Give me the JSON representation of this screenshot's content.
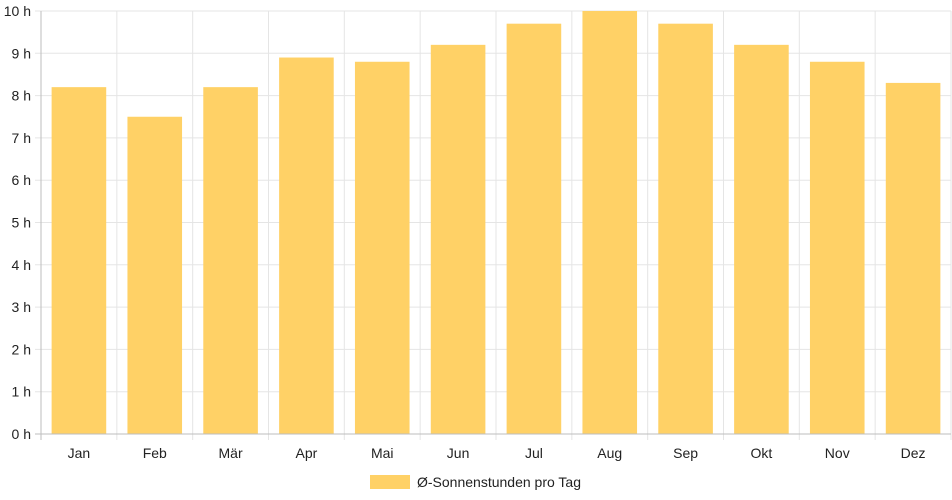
{
  "chart_data": {
    "type": "bar",
    "categories": [
      "Jan",
      "Feb",
      "Mär",
      "Apr",
      "Mai",
      "Jun",
      "Jul",
      "Aug",
      "Sep",
      "Okt",
      "Nov",
      "Dez"
    ],
    "series": [
      {
        "name": "Ø-Sonnenstunden pro Tag",
        "values": [
          8.2,
          7.5,
          8.2,
          8.9,
          8.8,
          9.2,
          9.7,
          10.0,
          9.7,
          9.2,
          8.8,
          8.3
        ],
        "color": "#ffd166"
      }
    ],
    "y_ticks": [
      "0 h",
      "1 h",
      "2 h",
      "3 h",
      "4 h",
      "5 h",
      "6 h",
      "7 h",
      "8 h",
      "9 h",
      "10 h"
    ],
    "title": "",
    "xlabel": "",
    "ylabel": "",
    "ylim": [
      0,
      10
    ],
    "grid": true,
    "legend_position": "bottom"
  }
}
